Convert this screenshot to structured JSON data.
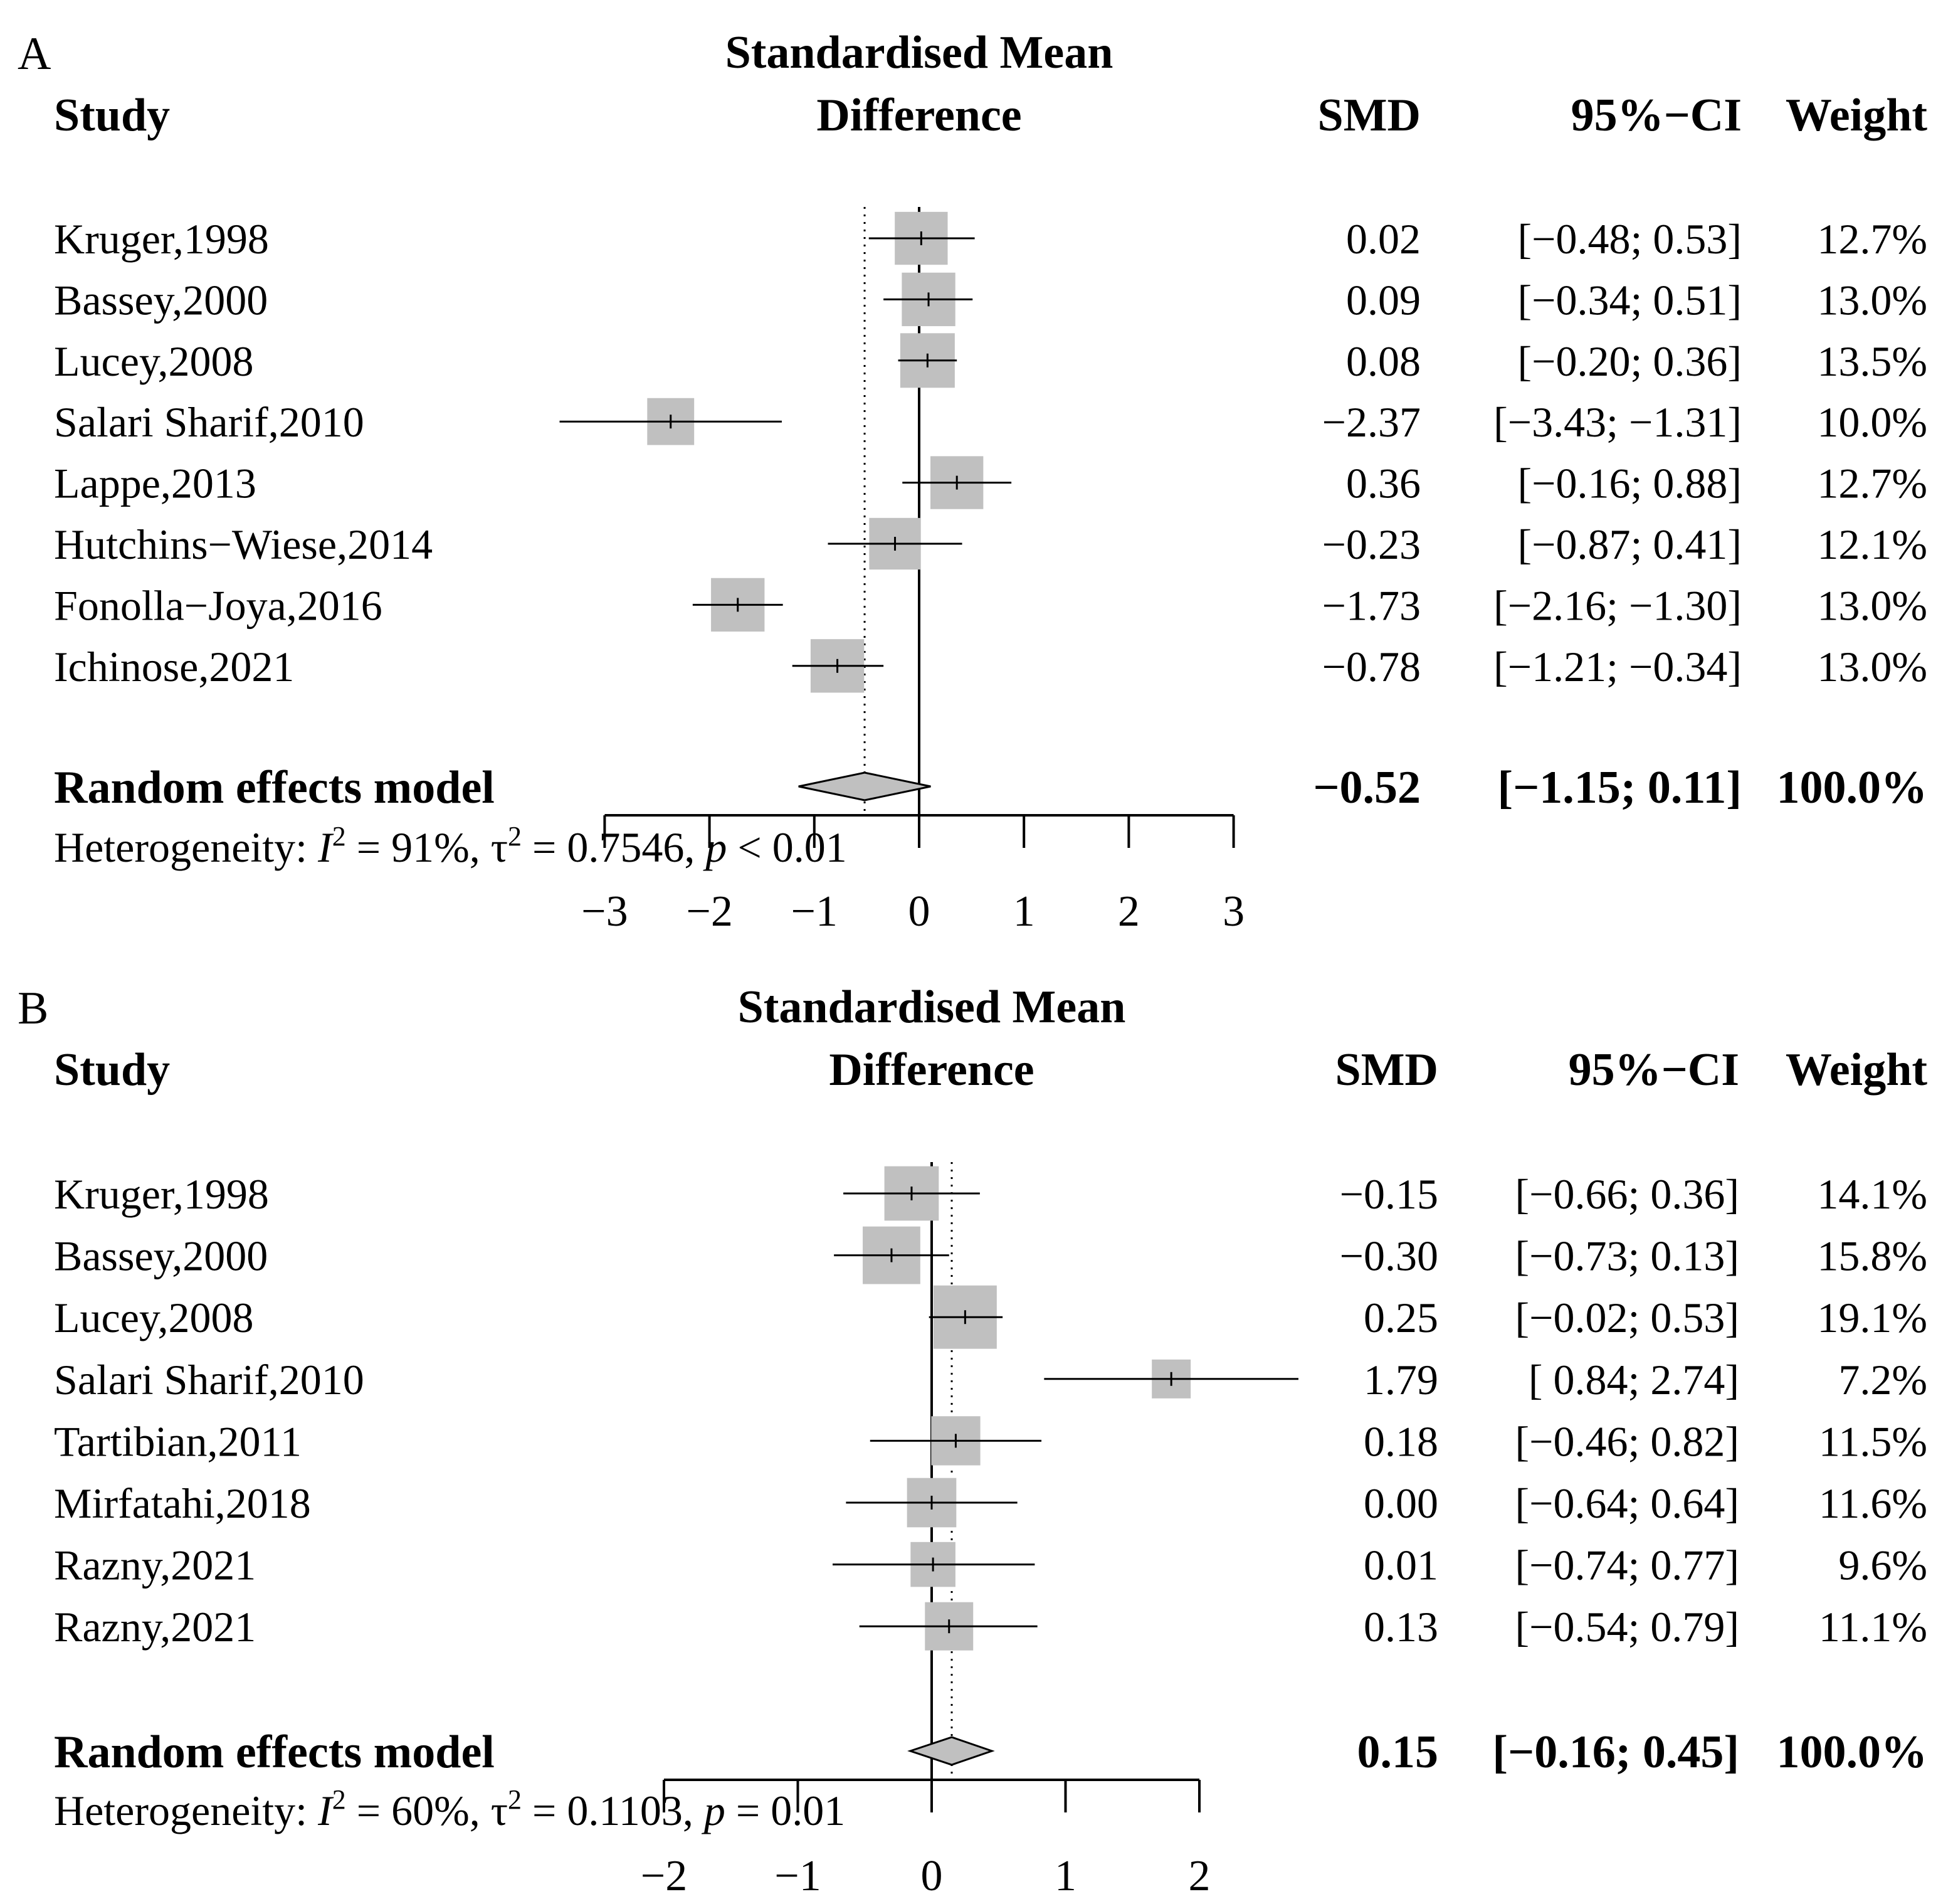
{
  "chart_data": [
    {
      "type": "forest",
      "panel_label": "A",
      "header": {
        "study": "Study",
        "effect_line1": "Standardised Mean",
        "effect_line2": "Difference",
        "smd": "SMD",
        "ci": "95%−CI",
        "weight": "Weight"
      },
      "xlim": [
        -3,
        3
      ],
      "ticks": [
        -3,
        -2,
        -1,
        0,
        1,
        2,
        3
      ],
      "tick_labels": [
        "−3",
        "−2",
        "−1",
        "0",
        "1",
        "2",
        "3"
      ],
      "studies": [
        {
          "name": "Kruger,1998",
          "smd": 0.02,
          "lower": -0.48,
          "upper": 0.53,
          "weight": 12.7,
          "smd_text": "0.02",
          "ci_text": "[−0.48;  0.53]",
          "weight_text": "12.7%"
        },
        {
          "name": "Bassey,2000",
          "smd": 0.09,
          "lower": -0.34,
          "upper": 0.51,
          "weight": 13.0,
          "smd_text": "0.09",
          "ci_text": "[−0.34;  0.51]",
          "weight_text": "13.0%"
        },
        {
          "name": "Lucey,2008",
          "smd": 0.08,
          "lower": -0.2,
          "upper": 0.36,
          "weight": 13.5,
          "smd_text": "0.08",
          "ci_text": "[−0.20;  0.36]",
          "weight_text": "13.5%"
        },
        {
          "name": "Salari Sharif,2010",
          "smd": -2.37,
          "lower": -3.43,
          "upper": -1.31,
          "weight": 10.0,
          "smd_text": "−2.37",
          "ci_text": "[−3.43; −1.31]",
          "weight_text": "10.0%"
        },
        {
          "name": "Lappe,2013",
          "smd": 0.36,
          "lower": -0.16,
          "upper": 0.88,
          "weight": 12.7,
          "smd_text": "0.36",
          "ci_text": "[−0.16;  0.88]",
          "weight_text": "12.7%"
        },
        {
          "name": "Hutchins−Wiese,2014",
          "smd": -0.23,
          "lower": -0.87,
          "upper": 0.41,
          "weight": 12.1,
          "smd_text": "−0.23",
          "ci_text": "[−0.87;  0.41]",
          "weight_text": "12.1%"
        },
        {
          "name": "Fonolla−Joya,2016",
          "smd": -1.73,
          "lower": -2.16,
          "upper": -1.3,
          "weight": 13.0,
          "smd_text": "−1.73",
          "ci_text": "[−2.16; −1.30]",
          "weight_text": "13.0%"
        },
        {
          "name": "Ichinose,2021",
          "smd": -0.78,
          "lower": -1.21,
          "upper": -0.34,
          "weight": 13.0,
          "smd_text": "−0.78",
          "ci_text": "[−1.21; −0.34]",
          "weight_text": "13.0%"
        }
      ],
      "pooled": {
        "label": "Random effects model",
        "smd": -0.52,
        "lower": -1.15,
        "upper": 0.11,
        "smd_text": "−0.52",
        "ci_text": "[−1.15;  0.11]",
        "weight_text": "100.0%"
      },
      "heterogeneity": {
        "prefix": "Heterogeneity: ",
        "i2_symbol": "I",
        "i2_text": " = 91%, ",
        "tau_symbol": "τ",
        "tau_text": " = 0.7546, ",
        "p_symbol": "p",
        "p_text": " < 0.01"
      }
    },
    {
      "type": "forest",
      "panel_label": "B",
      "header": {
        "study": "Study",
        "effect_line1": "Standardised Mean",
        "effect_line2": "Difference",
        "smd": "SMD",
        "ci": "95%−CI",
        "weight": "Weight"
      },
      "xlim": [
        -2,
        2
      ],
      "ticks": [
        -2,
        -1,
        0,
        1,
        2
      ],
      "tick_labels": [
        "−2",
        "−1",
        "0",
        "1",
        "2"
      ],
      "studies": [
        {
          "name": "Kruger,1998",
          "smd": -0.15,
          "lower": -0.66,
          "upper": 0.36,
          "weight": 14.1,
          "smd_text": "−0.15",
          "ci_text": "[−0.66; 0.36]",
          "weight_text": "14.1%"
        },
        {
          "name": "Bassey,2000",
          "smd": -0.3,
          "lower": -0.73,
          "upper": 0.13,
          "weight": 15.8,
          "smd_text": "−0.30",
          "ci_text": "[−0.73; 0.13]",
          "weight_text": "15.8%"
        },
        {
          "name": "Lucey,2008",
          "smd": 0.25,
          "lower": -0.02,
          "upper": 0.53,
          "weight": 19.1,
          "smd_text": "0.25",
          "ci_text": "[−0.02; 0.53]",
          "weight_text": "19.1%"
        },
        {
          "name": "Salari Sharif,2010",
          "smd": 1.79,
          "lower": 0.84,
          "upper": 2.74,
          "weight": 7.2,
          "smd_text": "1.79",
          "ci_text": "[ 0.84; 2.74]",
          "weight_text": "7.2%"
        },
        {
          "name": "Tartibian,2011",
          "smd": 0.18,
          "lower": -0.46,
          "upper": 0.82,
          "weight": 11.5,
          "smd_text": "0.18",
          "ci_text": "[−0.46; 0.82]",
          "weight_text": "11.5%"
        },
        {
          "name": "Mirfatahi,2018",
          "smd": 0.0,
          "lower": -0.64,
          "upper": 0.64,
          "weight": 11.6,
          "smd_text": "0.00",
          "ci_text": "[−0.64; 0.64]",
          "weight_text": "11.6%"
        },
        {
          "name": "Razny,2021",
          "smd": 0.01,
          "lower": -0.74,
          "upper": 0.77,
          "weight": 9.6,
          "smd_text": "0.01",
          "ci_text": "[−0.74; 0.77]",
          "weight_text": "9.6%"
        },
        {
          "name": "Razny,2021",
          "smd": 0.13,
          "lower": -0.54,
          "upper": 0.79,
          "weight": 11.1,
          "smd_text": "0.13",
          "ci_text": "[−0.54; 0.79]",
          "weight_text": "11.1%"
        }
      ],
      "pooled": {
        "label": "Random effects model",
        "smd": 0.15,
        "lower": -0.16,
        "upper": 0.45,
        "smd_text": "0.15",
        "ci_text": "[−0.16; 0.45]",
        "weight_text": "100.0%"
      },
      "heterogeneity": {
        "prefix": "Heterogeneity: ",
        "i2_symbol": "I",
        "i2_text": " = 60%, ",
        "tau_symbol": "τ",
        "tau_text": " = 0.1103, ",
        "p_symbol": "p",
        "p_text": " = 0.01"
      }
    }
  ]
}
